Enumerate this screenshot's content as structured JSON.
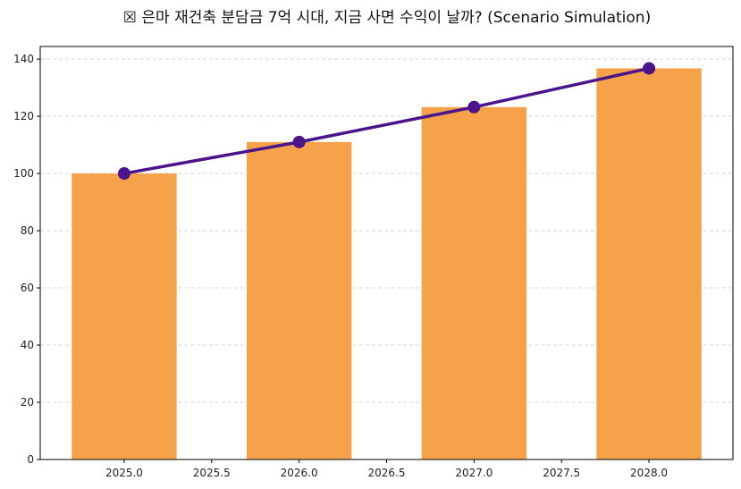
{
  "chart_data": {
    "type": "bar+line",
    "title": "☒ 은마 재건축 분담금 7억 시대, 지금 사면 수익이 날까? (Scenario Simulation)",
    "xlabel": "",
    "ylabel": "",
    "x": [
      2025,
      2026,
      2027,
      2028
    ],
    "series": [
      {
        "type": "bar",
        "values": [
          100,
          111,
          123.21,
          136.76
        ],
        "color": "#F6A24B"
      },
      {
        "type": "line",
        "values": [
          100,
          111,
          123.21,
          136.76
        ],
        "color": "#4A148C",
        "marker": "circle"
      }
    ],
    "xlim": [
      2024.52,
      2028.48
    ],
    "ylim": [
      0,
      144.4
    ],
    "x_ticks": [
      "2025.0",
      "2025.5",
      "2026.0",
      "2026.5",
      "2027.0",
      "2027.5",
      "2028.0"
    ],
    "y_ticks": [
      "0",
      "20",
      "40",
      "60",
      "80",
      "100",
      "120",
      "140"
    ],
    "grid": "y-dashed",
    "legend": "none"
  }
}
